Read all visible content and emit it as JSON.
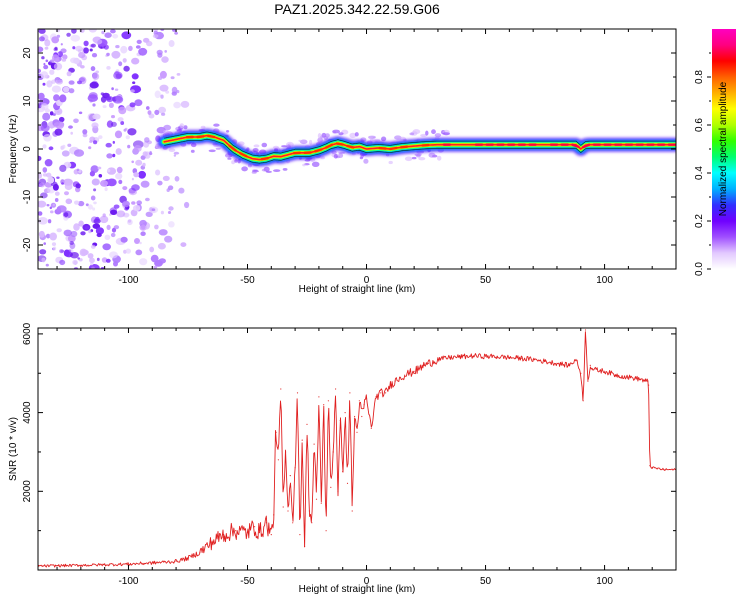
{
  "title": "PAZ1.2025.342.22.59.G06",
  "chart_data": [
    {
      "type": "heatmap",
      "name": "spectrogram",
      "xlabel": "Height of straight line (km)",
      "ylabel": "Frequency (Hz)",
      "xlim": [
        -138,
        130
      ],
      "ylim": [
        -25,
        25
      ],
      "xticks": [
        -100,
        -50,
        0,
        50,
        100
      ],
      "xtick_labels": [
        "-100",
        "-50",
        "0",
        "50",
        "100"
      ],
      "yticks": [
        -20,
        -10,
        0,
        10,
        20
      ],
      "ytick_labels": [
        "-20",
        "-10",
        "0",
        "10",
        "20"
      ],
      "colorbar": {
        "label": "Normalized spectral amplitude",
        "range": [
          0,
          1
        ],
        "ticks": [
          0.0,
          0.2,
          0.4,
          0.6,
          0.8
        ],
        "tick_labels": [
          "0.0",
          "0.2",
          "0.4",
          "0.6",
          "0.8"
        ],
        "colors": [
          "#ffffff",
          "#e2c8ff",
          "#a050ff",
          "#7000ff",
          "#3030ff",
          "#00b0ff",
          "#00ffff",
          "#00ff70",
          "#30ff00",
          "#b0ff00",
          "#ffff00",
          "#ffb000",
          "#ff6000",
          "#ff0000",
          "#ff0080",
          "#ff00c0"
        ]
      },
      "signal_track": {
        "x": [
          -85,
          -80,
          -75,
          -70,
          -67,
          -64,
          -60,
          -56,
          -52,
          -48,
          -45,
          -42,
          -39,
          -36,
          -33,
          -30,
          -27,
          -24,
          -20,
          -17,
          -15,
          -12,
          -9,
          -6,
          -3,
          0,
          5,
          10,
          15,
          20,
          25,
          30,
          40,
          50,
          60,
          70,
          80,
          88,
          90,
          92,
          94,
          100,
          110,
          120,
          130
        ],
        "freq_hz": [
          1.5,
          2.0,
          2.5,
          2.5,
          2.8,
          2.5,
          1.8,
          0.0,
          -1.2,
          -2.0,
          -2.2,
          -2.0,
          -1.5,
          -1.6,
          -1.2,
          -0.8,
          -0.8,
          -0.8,
          -0.3,
          0.3,
          0.8,
          1.2,
          0.8,
          0.3,
          0.5,
          0.0,
          0.2,
          0.0,
          0.4,
          0.6,
          0.8,
          0.9,
          0.9,
          0.9,
          0.9,
          0.9,
          0.9,
          0.9,
          0.0,
          0.8,
          0.9,
          0.9,
          0.9,
          0.9,
          0.9
        ]
      },
      "noise_region_x": [
        -138,
        -75
      ]
    },
    {
      "type": "line",
      "name": "snr",
      "xlabel": "Height of straight line (km)",
      "ylabel": "SNR (10 * v/v)",
      "xlim": [
        -138,
        130
      ],
      "ylim": [
        0,
        6150
      ],
      "xticks": [
        -100,
        -50,
        0,
        50,
        100
      ],
      "xtick_labels": [
        "-100",
        "-50",
        "0",
        "50",
        "100"
      ],
      "yticks": [
        2000,
        4000,
        6000
      ],
      "ytick_labels": [
        "2000",
        "4000",
        "6000"
      ],
      "series": [
        {
          "name": "SNR",
          "color": "#e02020",
          "x": [
            -138,
            -120,
            -100,
            -90,
            -80,
            -75,
            -70,
            -65,
            -60,
            -55,
            -50,
            -47,
            -45,
            -42,
            -40,
            -39,
            -38,
            -37,
            -36,
            -35,
            -34,
            -33,
            -32,
            -31,
            -30,
            -29,
            -28,
            -27,
            -26,
            -25,
            -24,
            -23,
            -22,
            -21,
            -20,
            -19,
            -18,
            -17,
            -16,
            -15,
            -14,
            -13,
            -12,
            -11,
            -10,
            -9,
            -8,
            -7,
            -6,
            -5,
            -4,
            -3,
            -2,
            -1,
            0,
            2,
            4,
            6,
            8,
            10,
            12,
            14,
            16,
            18,
            20,
            22,
            24,
            26,
            28,
            30,
            35,
            40,
            45,
            50,
            55,
            60,
            65,
            70,
            75,
            80,
            85,
            88,
            90,
            91,
            92,
            93,
            94,
            95,
            100,
            105,
            110,
            115,
            117,
            118,
            118.5,
            119,
            120,
            125,
            130
          ],
          "values": [
            100,
            120,
            150,
            180,
            220,
            300,
            450,
            700,
            900,
            1000,
            950,
            1100,
            950,
            1200,
            900,
            1400,
            3500,
            2800,
            4600,
            1600,
            3000,
            1500,
            2400,
            1200,
            2600,
            4500,
            900,
            3300,
            600,
            3700,
            1500,
            1200,
            3200,
            1800,
            4400,
            1700,
            4200,
            1000,
            4300,
            2100,
            3000,
            4600,
            2000,
            3800,
            2500,
            4000,
            2200,
            4500,
            1500,
            3900,
            3500,
            4300,
            3900,
            4200,
            4350,
            3600,
            4400,
            4500,
            4500,
            4700,
            4800,
            4900,
            4950,
            5000,
            5050,
            5100,
            5200,
            5250,
            5300,
            5350,
            5400,
            5420,
            5440,
            5430,
            5420,
            5400,
            5380,
            5350,
            5300,
            5250,
            5200,
            5350,
            5000,
            4300,
            6100,
            4800,
            5200,
            5100,
            5050,
            4950,
            4900,
            4850,
            4800,
            4800,
            4700,
            2650,
            2600,
            2550,
            2550
          ]
        }
      ]
    }
  ]
}
